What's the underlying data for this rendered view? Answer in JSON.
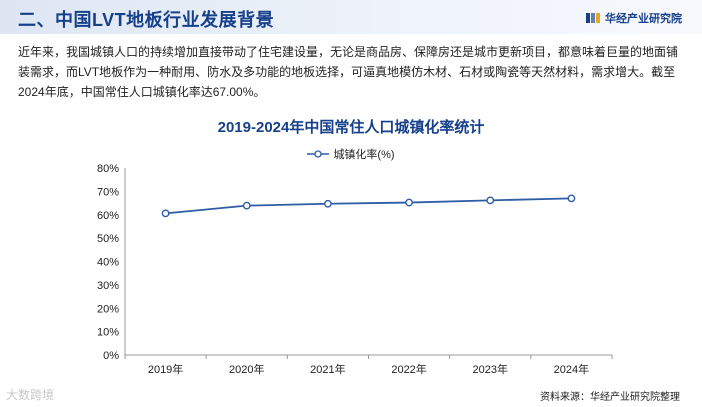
{
  "header": {
    "title": "二、中国LVT地板行业发展背景",
    "brand": "华经产业研究院"
  },
  "intro": {
    "text": "近年来，我国城镇人口的持续增加直接带动了住宅建设量，无论是商品房、保障房还是城市更新项目，都意味着巨量的地面铺装需求，而LVT地板作为一种耐用、防水及多功能的地板选择，可逼真地模仿木材、石材或陶瓷等天然材料，需求增大。截至2024年底，中国常住人口城镇化率达67.00%。"
  },
  "colors": {
    "accent": "#17408b",
    "line": "#2e5da8",
    "axis": "#999999"
  },
  "chart_data": {
    "type": "line",
    "title": "2019-2024年中国常住人口城镇化率统计",
    "categories": [
      "2019年",
      "2020年",
      "2021年",
      "2022年",
      "2023年",
      "2024年"
    ],
    "series": [
      {
        "name": "城镇化率(%)",
        "values": [
          60.6,
          63.89,
          64.72,
          65.22,
          66.16,
          67.0
        ]
      }
    ],
    "ylim": [
      0,
      80
    ],
    "yticks": [
      "0%",
      "10%",
      "20%",
      "30%",
      "40%",
      "50%",
      "60%",
      "70%",
      "80%"
    ],
    "legend": "top-center",
    "grid": false
  },
  "footer": {
    "source": "资料来源：华经产业研究院整理",
    "watermark": "大数跨境"
  }
}
